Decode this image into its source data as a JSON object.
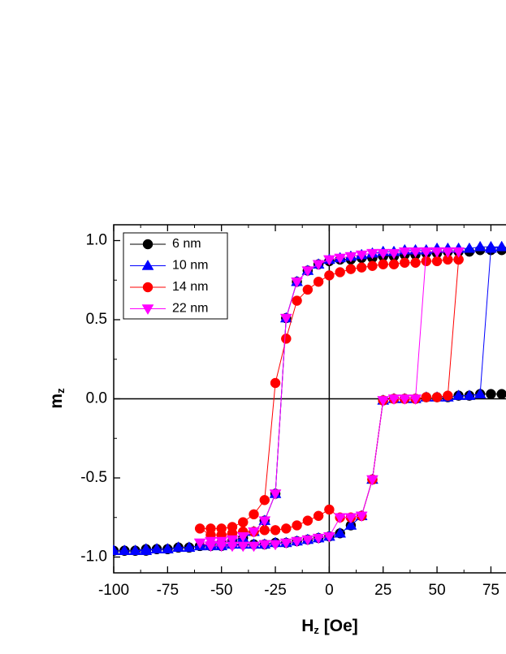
{
  "chart_data": {
    "type": "line",
    "xlabel": {
      "main": "H",
      "sub": "z",
      "unit": " [Oe]"
    },
    "ylabel": {
      "main": "m",
      "sub": "z"
    },
    "xlim": [
      -100,
      82
    ],
    "ylim": [
      -1.1,
      1.1
    ],
    "xticks": [
      -100,
      -75,
      -50,
      -25,
      0,
      25,
      50,
      75
    ],
    "yticks": [
      {
        "value": -1,
        "label": "-1.0"
      },
      -0.5,
      {
        "value": 0,
        "label": "0.0"
      },
      0.5,
      {
        "value": 1,
        "label": "1.0"
      }
    ],
    "zero_lines": true,
    "legend_position": "upper left",
    "series": [
      {
        "name": "6 nm",
        "color": "#000000",
        "marker": "circle",
        "x": [
          80,
          75,
          70,
          65,
          60,
          55,
          50,
          45,
          40,
          35,
          30,
          25,
          20,
          15,
          10,
          5,
          0,
          -5,
          -10,
          -15,
          -20,
          -25,
          -30,
          -35,
          -40,
          -45,
          -50,
          -55,
          -60,
          -65,
          -70,
          -75,
          -80,
          -85,
          -90,
          -95,
          -100,
          -95,
          -90,
          -85,
          -80,
          -75,
          -70,
          -65,
          -60,
          -55,
          -50,
          -45,
          -40,
          -35,
          -30,
          -25,
          -20,
          -15,
          -10,
          -5,
          0,
          5,
          10,
          15,
          20,
          25,
          30,
          35,
          40,
          45,
          50,
          55,
          60,
          65,
          70,
          75,
          80
        ],
        "values": [
          0.94,
          0.94,
          0.94,
          0.93,
          0.93,
          0.93,
          0.92,
          0.92,
          0.91,
          0.91,
          0.9,
          0.9,
          0.89,
          0.89,
          0.88,
          0.88,
          0.87,
          0.85,
          0.81,
          0.74,
          0.51,
          -0.6,
          -0.77,
          -0.84,
          -0.88,
          -0.9,
          -0.91,
          -0.92,
          -0.93,
          -0.94,
          -0.94,
          -0.95,
          -0.95,
          -0.96,
          -0.96,
          -0.96,
          -0.96,
          -0.96,
          -0.96,
          -0.95,
          -0.95,
          -0.95,
          -0.94,
          -0.94,
          -0.93,
          -0.93,
          -0.93,
          -0.92,
          -0.92,
          -0.92,
          -0.92,
          -0.91,
          -0.91,
          -0.9,
          -0.89,
          -0.88,
          -0.87,
          -0.85,
          -0.8,
          -0.74,
          -0.51,
          -0.01,
          0,
          0,
          0,
          0.01,
          0.01,
          0.01,
          0.02,
          0.02,
          0.03,
          0.03,
          0.03
        ]
      },
      {
        "name": "10 nm",
        "color": "#0000ff",
        "marker": "triangle-up",
        "x": [
          80,
          75,
          70,
          65,
          60,
          55,
          50,
          45,
          40,
          35,
          30,
          25,
          20,
          15,
          10,
          5,
          0,
          -5,
          -10,
          -15,
          -20,
          -25,
          -30,
          -35,
          -40,
          -45,
          -50,
          -55,
          -60,
          -65,
          -70,
          -75,
          -80,
          -85,
          -90,
          -95,
          -100,
          -95,
          -90,
          -85,
          -80,
          -75,
          -70,
          -65,
          -60,
          -55,
          -50,
          -45,
          -40,
          -35,
          -30,
          -25,
          -20,
          -15,
          -10,
          -5,
          0,
          5,
          10,
          15,
          20,
          25,
          30,
          35,
          40,
          45,
          50,
          55,
          60,
          65,
          70,
          75,
          80
        ],
        "values": [
          0.96,
          0.96,
          0.96,
          0.95,
          0.95,
          0.95,
          0.95,
          0.94,
          0.94,
          0.94,
          0.93,
          0.93,
          0.92,
          0.91,
          0.9,
          0.89,
          0.88,
          0.85,
          0.81,
          0.74,
          0.51,
          -0.6,
          -0.77,
          -0.84,
          -0.88,
          -0.9,
          -0.91,
          -0.92,
          -0.93,
          -0.94,
          -0.94,
          -0.95,
          -0.95,
          -0.96,
          -0.96,
          -0.96,
          -0.96,
          -0.96,
          -0.96,
          -0.95,
          -0.95,
          -0.95,
          -0.94,
          -0.94,
          -0.93,
          -0.93,
          -0.93,
          -0.92,
          -0.92,
          -0.92,
          -0.92,
          -0.91,
          -0.91,
          -0.9,
          -0.89,
          -0.88,
          -0.87,
          -0.85,
          -0.8,
          -0.74,
          -0.51,
          -0.01,
          0,
          0,
          0,
          0.01,
          0.01,
          0.01,
          0.02,
          0.02,
          0.03,
          0.95,
          0.96
        ]
      },
      {
        "name": "14 nm",
        "color": "#ff0000",
        "marker": "circle",
        "x": [
          60,
          55,
          50,
          45,
          40,
          35,
          30,
          25,
          20,
          15,
          10,
          5,
          0,
          -5,
          -10,
          -15,
          -20,
          -25,
          -30,
          -35,
          -40,
          -45,
          -50,
          -55,
          -60,
          -55,
          -50,
          -45,
          -40,
          -35,
          -30,
          -25,
          -20,
          -15,
          -10,
          -5,
          0,
          5,
          10,
          15,
          20,
          25,
          30,
          35,
          40,
          45,
          50,
          55,
          60
        ],
        "values": [
          0.88,
          0.88,
          0.87,
          0.87,
          0.86,
          0.86,
          0.85,
          0.85,
          0.84,
          0.83,
          0.82,
          0.8,
          0.78,
          0.74,
          0.69,
          0.62,
          0.38,
          0.1,
          -0.64,
          -0.73,
          -0.78,
          -0.81,
          -0.82,
          -0.82,
          -0.82,
          -0.86,
          -0.86,
          -0.85,
          -0.84,
          -0.84,
          -0.83,
          -0.83,
          -0.82,
          -0.8,
          -0.77,
          -0.74,
          -0.7,
          -0.75,
          -0.75,
          -0.74,
          -0.51,
          -0.01,
          0,
          0,
          0,
          0.01,
          0.01,
          0.02,
          0.88
        ]
      },
      {
        "name": "22 nm",
        "color": "#ff00ff",
        "marker": "triangle-down",
        "x": [
          60,
          55,
          50,
          45,
          40,
          35,
          30,
          25,
          20,
          15,
          10,
          5,
          0,
          -5,
          -10,
          -15,
          -20,
          -25,
          -30,
          -35,
          -40,
          -45,
          -50,
          -55,
          -60,
          -55,
          -50,
          -45,
          -40,
          -35,
          -30,
          -25,
          -20,
          -15,
          -10,
          -5,
          0,
          5,
          10,
          15,
          20,
          25,
          30,
          35,
          40,
          45,
          50,
          55,
          60
        ],
        "values": [
          0.93,
          0.93,
          0.93,
          0.93,
          0.93,
          0.93,
          0.92,
          0.92,
          0.92,
          0.91,
          0.9,
          0.89,
          0.88,
          0.85,
          0.81,
          0.74,
          0.51,
          -0.6,
          -0.77,
          -0.84,
          -0.87,
          -0.89,
          -0.9,
          -0.9,
          -0.91,
          -0.93,
          -0.93,
          -0.93,
          -0.93,
          -0.93,
          -0.92,
          -0.92,
          -0.91,
          -0.9,
          -0.89,
          -0.88,
          -0.87,
          -0.75,
          -0.75,
          -0.74,
          -0.51,
          -0.01,
          0,
          0,
          0,
          0.93,
          0.93,
          0.93,
          0.93
        ]
      }
    ]
  }
}
